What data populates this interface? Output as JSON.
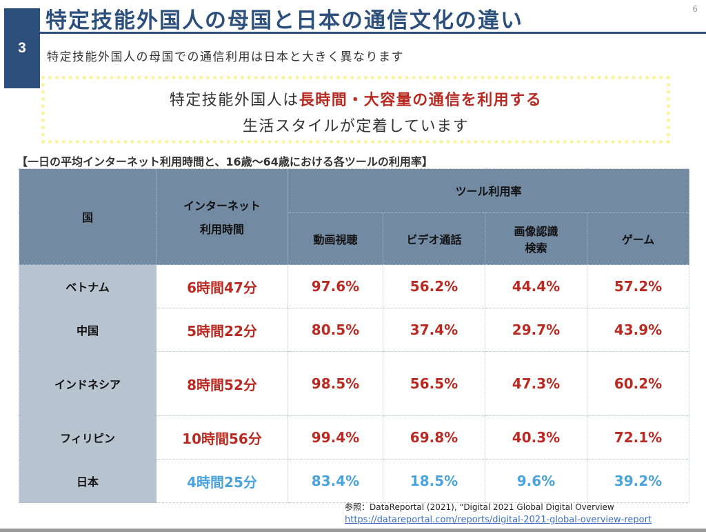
{
  "header": {
    "section_number": "3",
    "title": "特定技能外国人の母国と日本の通信文化の違い",
    "page_number": "6",
    "subtitle": "特定技能外国人の母国での通信利用は日本と大きく異なります"
  },
  "callout": {
    "line1_prefix": "特定技能外国人は",
    "line1_emphasis": "長時間・大容量の通信を利用する",
    "line2": "生活スタイルが定着しています"
  },
  "table": {
    "caption": "【一日の平均インターネット利用時間と、16歳～64歳における各ツールの利用率】",
    "headers": {
      "country": "国",
      "internet_time": "インターネット\n利用時間",
      "internet_time_line1": "インターネット",
      "internet_time_line2": "利用時間",
      "tools_group": "ツール利用率",
      "tools": [
        "動画視聴",
        "ビデオ通話",
        "画像認識\n検索",
        "ゲーム"
      ],
      "tool_image_line1": "画像認識",
      "tool_image_line2": "検索"
    },
    "rows": [
      {
        "country": "ベトナム",
        "internet_time": "6時間47分",
        "values": [
          "97.6%",
          "56.2%",
          "44.4%",
          "57.2%"
        ]
      },
      {
        "country": "中国",
        "internet_time": "5時間22分",
        "values": [
          "80.5%",
          "37.4%",
          "29.7%",
          "43.9%"
        ]
      },
      {
        "country": "インドネシア",
        "internet_time": "8時間52分",
        "values": [
          "98.5%",
          "56.5%",
          "47.3%",
          "60.2%"
        ]
      },
      {
        "country": "フィリピン",
        "internet_time": "10時間56分",
        "values": [
          "99.4%",
          "69.8%",
          "40.3%",
          "72.1%"
        ]
      },
      {
        "country": "日本",
        "internet_time": "4時間25分",
        "values": [
          "83.4%",
          "18.5%",
          "9.6%",
          "39.2%"
        ]
      }
    ]
  },
  "reference": {
    "text": "参照：DataReportal (2021), “Digital 2021 Global Digital Overview",
    "link": "https://datareportal.com/reports/digital-2021-global-overview-report"
  },
  "colors": {
    "brand_navy": "#2c4f7c",
    "highlight_red": "#b82a22",
    "japan_blue": "#4aa3dc",
    "header_fill": "#738aa3",
    "country_fill": "#b8c3d0",
    "callout_border": "#fbf39a"
  }
}
